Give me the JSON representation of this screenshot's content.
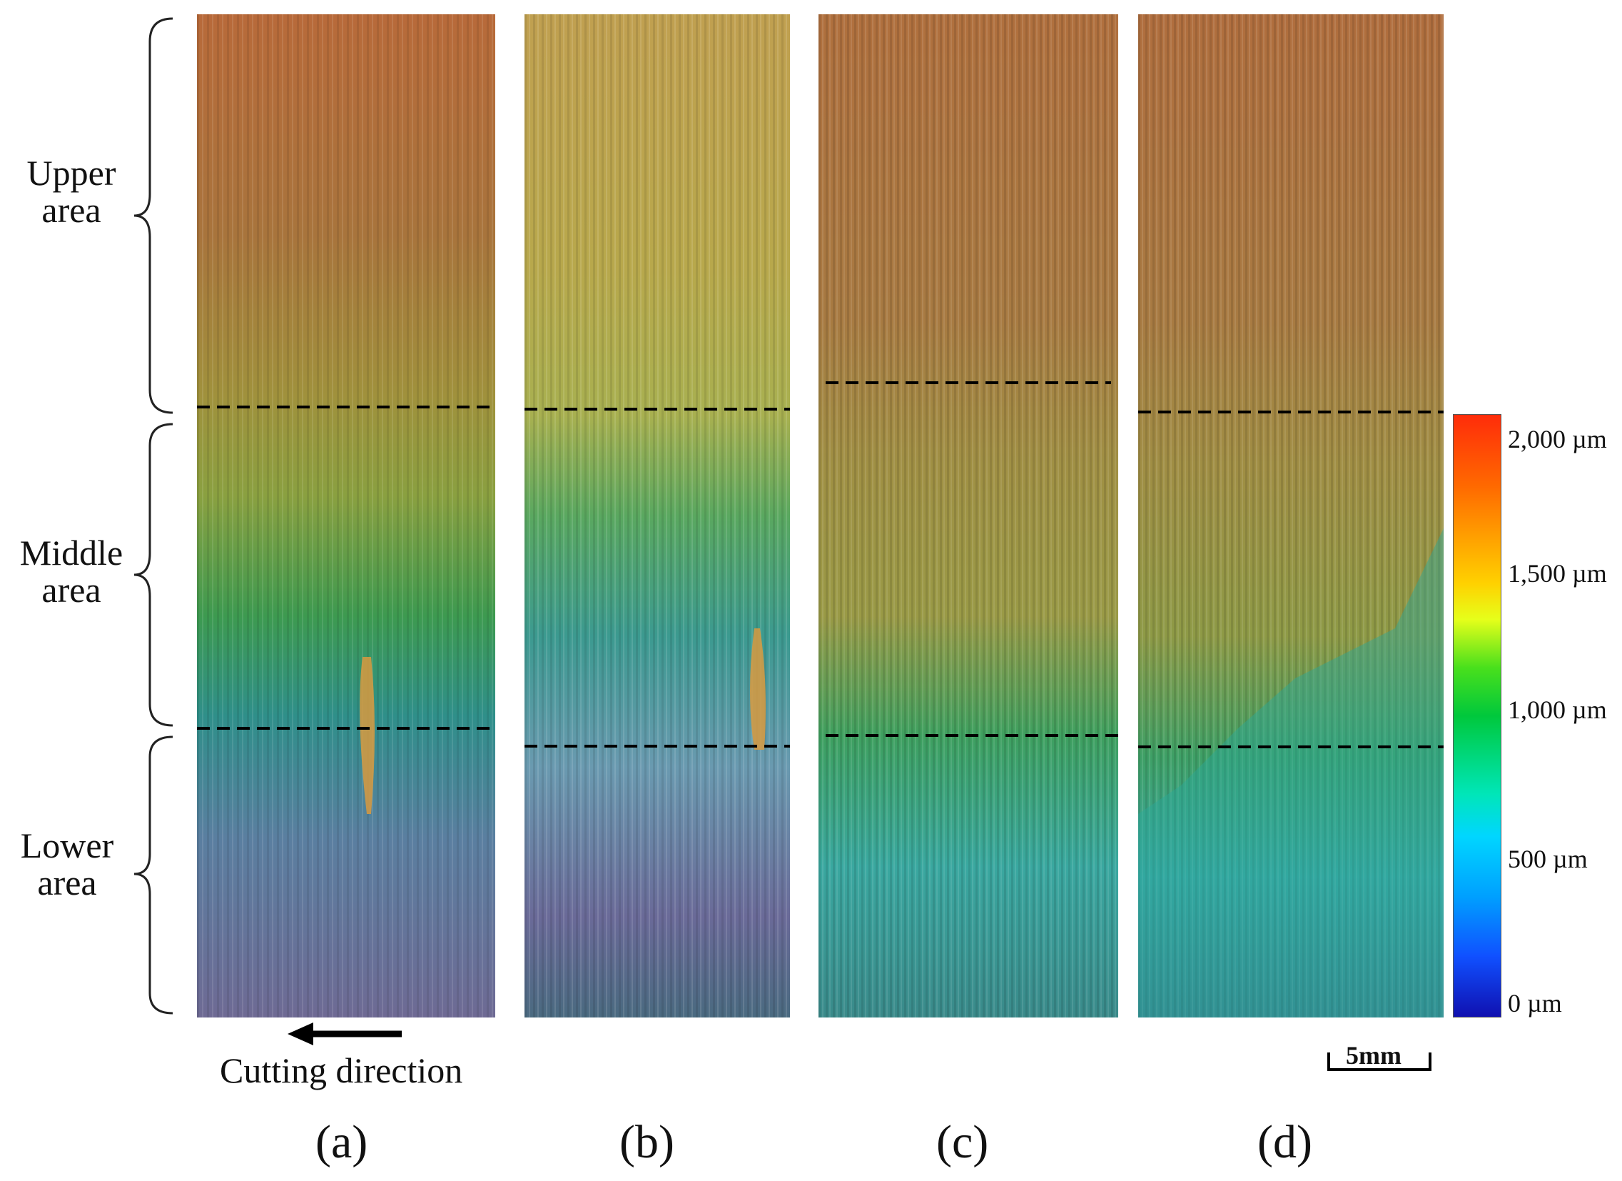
{
  "regions": [
    {
      "label": "Upper\narea"
    },
    {
      "label": "Middle\narea"
    },
    {
      "label": "Lower\narea"
    }
  ],
  "panels": [
    {
      "label": "(a)"
    },
    {
      "label": "(b)"
    },
    {
      "label": "(c)"
    },
    {
      "label": "(d)"
    }
  ],
  "colorbar": {
    "ticks": [
      "2,000 µm",
      "1,500 µm",
      "1,000 µm",
      "500 µm",
      "0 µm"
    ],
    "colors": [
      "#ff2c0a",
      "#ffd100",
      "#00c83c",
      "#00d6ff",
      "#1010b0"
    ]
  },
  "annotation": {
    "cutting_direction": "Cutting direction"
  },
  "scale_bar": {
    "label": "5mm"
  }
}
